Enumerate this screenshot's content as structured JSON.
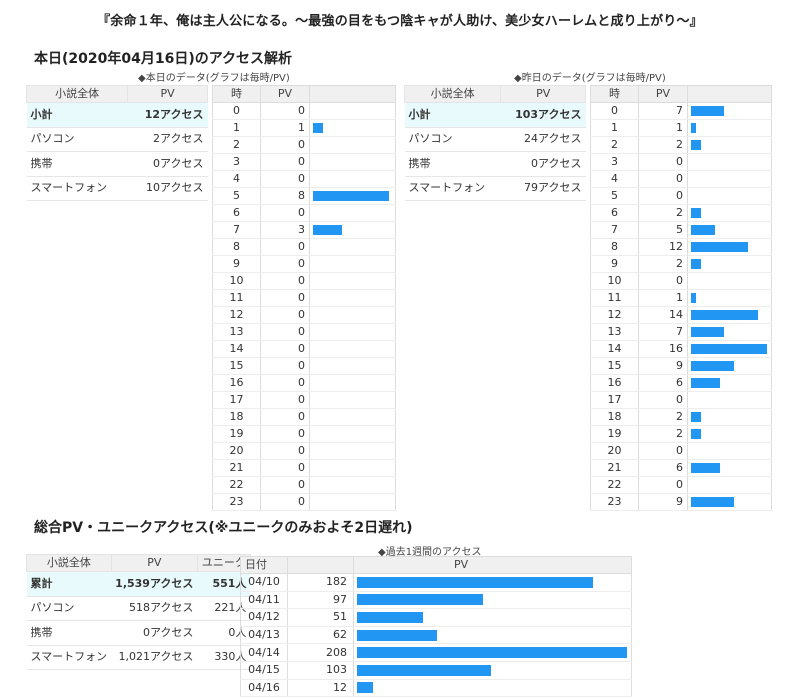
{
  "novel_title": "『余命１年、俺は主人公になる。～最強の目をもつ陰キャが人助け、美少女ハーレムと成り上がり～』",
  "today_section": {
    "title": "本日(2020年04月16日)のアクセス解析",
    "today_caption": "◆本日のデータ(グラフは毎時/PV)",
    "yesterday_caption": "◆昨日のデータ(グラフは毎時/PV)"
  },
  "summary_headers": {
    "overall": "小説全体",
    "pv": "PV",
    "unique": "ユニーク"
  },
  "hour_headers": {
    "hour": "時",
    "pv": "PV"
  },
  "today_summary": [
    {
      "label": "小計",
      "value": "12アクセス"
    },
    {
      "label": "パソコン",
      "value": "2アクセス"
    },
    {
      "label": "携帯",
      "value": "0アクセス"
    },
    {
      "label": "スマートフォン",
      "value": "10アクセス"
    }
  ],
  "yesterday_summary": [
    {
      "label": "小計",
      "value": "103アクセス"
    },
    {
      "label": "パソコン",
      "value": "24アクセス"
    },
    {
      "label": "携帯",
      "value": "0アクセス"
    },
    {
      "label": "スマートフォン",
      "value": "79アクセス"
    }
  ],
  "today_hourly": [
    {
      "hour": "0",
      "pv": 0
    },
    {
      "hour": "1",
      "pv": 1
    },
    {
      "hour": "2",
      "pv": 0
    },
    {
      "hour": "3",
      "pv": 0
    },
    {
      "hour": "4",
      "pv": 0
    },
    {
      "hour": "5",
      "pv": 8
    },
    {
      "hour": "6",
      "pv": 0
    },
    {
      "hour": "7",
      "pv": 3
    },
    {
      "hour": "8",
      "pv": 0
    },
    {
      "hour": "9",
      "pv": 0
    },
    {
      "hour": "10",
      "pv": 0
    },
    {
      "hour": "11",
      "pv": 0
    },
    {
      "hour": "12",
      "pv": 0
    },
    {
      "hour": "13",
      "pv": 0
    },
    {
      "hour": "14",
      "pv": 0
    },
    {
      "hour": "15",
      "pv": 0
    },
    {
      "hour": "16",
      "pv": 0
    },
    {
      "hour": "17",
      "pv": 0
    },
    {
      "hour": "18",
      "pv": 0
    },
    {
      "hour": "19",
      "pv": 0
    },
    {
      "hour": "20",
      "pv": 0
    },
    {
      "hour": "21",
      "pv": 0
    },
    {
      "hour": "22",
      "pv": 0
    },
    {
      "hour": "23",
      "pv": 0
    }
  ],
  "yesterday_hourly": [
    {
      "hour": "0",
      "pv": 7
    },
    {
      "hour": "1",
      "pv": 1
    },
    {
      "hour": "2",
      "pv": 2
    },
    {
      "hour": "3",
      "pv": 0
    },
    {
      "hour": "4",
      "pv": 0
    },
    {
      "hour": "5",
      "pv": 0
    },
    {
      "hour": "6",
      "pv": 2
    },
    {
      "hour": "7",
      "pv": 5
    },
    {
      "hour": "8",
      "pv": 12
    },
    {
      "hour": "9",
      "pv": 2
    },
    {
      "hour": "10",
      "pv": 0
    },
    {
      "hour": "11",
      "pv": 1
    },
    {
      "hour": "12",
      "pv": 14
    },
    {
      "hour": "13",
      "pv": 7
    },
    {
      "hour": "14",
      "pv": 16
    },
    {
      "hour": "15",
      "pv": 9
    },
    {
      "hour": "16",
      "pv": 6
    },
    {
      "hour": "17",
      "pv": 0
    },
    {
      "hour": "18",
      "pv": 2
    },
    {
      "hour": "19",
      "pv": 2
    },
    {
      "hour": "20",
      "pv": 0
    },
    {
      "hour": "21",
      "pv": 6
    },
    {
      "hour": "22",
      "pv": 0
    },
    {
      "hour": "23",
      "pv": 9
    }
  ],
  "total_section": {
    "title": "総合PV・ユニークアクセス(※ユニークのみおよそ2日遅れ)",
    "week_caption": "◆過去1週間のアクセス"
  },
  "total_summary": [
    {
      "label": "累計",
      "pv": "1,539アクセス",
      "unique": "551人"
    },
    {
      "label": "パソコン",
      "pv": "518アクセス",
      "unique": "221人"
    },
    {
      "label": "携帯",
      "pv": "0アクセス",
      "unique": "0人"
    },
    {
      "label": "スマートフォン",
      "pv": "1,021アクセス",
      "unique": "330人"
    }
  ],
  "week_headers": {
    "date": "日付",
    "pv": "PV"
  },
  "weekly": [
    {
      "date": "04/10",
      "pv": 182
    },
    {
      "date": "04/11",
      "pv": 97
    },
    {
      "date": "04/12",
      "pv": 51
    },
    {
      "date": "04/13",
      "pv": 62
    },
    {
      "date": "04/14",
      "pv": 208
    },
    {
      "date": "04/15",
      "pv": 103
    },
    {
      "date": "04/16",
      "pv": 12
    }
  ],
  "colors": {
    "bar": "#2196f3",
    "subtotal_bg": "#e8fafc",
    "header_bg": "#f0f0f0"
  }
}
